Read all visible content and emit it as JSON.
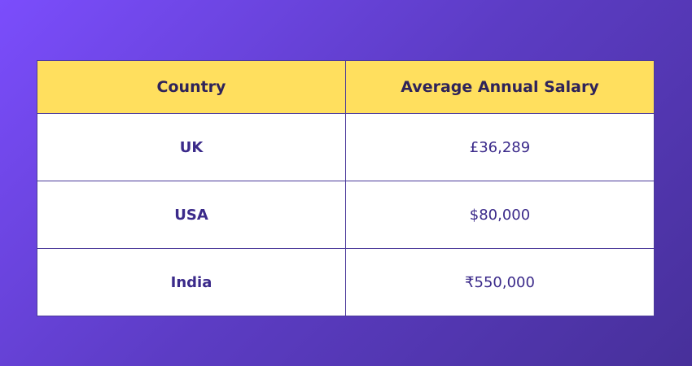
{
  "table": {
    "header": [
      "Country",
      "Average Annual Salary"
    ],
    "rows": [
      [
        "UK",
        "£36,289"
      ],
      [
        "USA",
        "$80,000"
      ],
      [
        "India",
        "₹550,000"
      ]
    ]
  }
}
